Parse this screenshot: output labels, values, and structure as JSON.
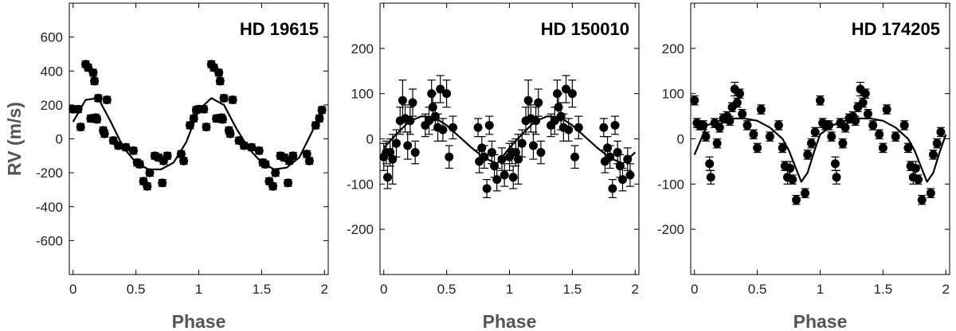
{
  "chart_data": [
    {
      "type": "scatter",
      "title": "HD 19615",
      "xlabel": "Phase",
      "ylabel": "RV (m/s)",
      "xlim": [
        -0.03,
        2.03
      ],
      "ylim": [
        -800,
        800
      ],
      "xticks": [
        "0",
        "0.5",
        "1",
        "1.5",
        "2"
      ],
      "yticks": [
        "600",
        "400",
        "200",
        "0",
        "-200",
        "-400",
        "-600"
      ],
      "grid": false,
      "model_curve": {
        "description": "sinusoidal fit",
        "x": [
          0,
          0.1,
          0.2,
          0.3,
          0.4,
          0.5,
          0.6,
          0.7,
          0.8,
          0.9,
          1.0,
          1.1,
          1.2,
          1.3,
          1.4,
          1.5,
          1.6,
          1.7,
          1.8,
          1.9,
          2.0
        ],
        "y": [
          100,
          230,
          240,
          100,
          -50,
          -140,
          -180,
          -180,
          -140,
          -20,
          170,
          240,
          200,
          60,
          -60,
          -140,
          -180,
          -170,
          -110,
          40,
          190
        ]
      },
      "points": [
        {
          "x": 0.0,
          "y": 175,
          "err": 20
        },
        {
          "x": 0.04,
          "y": 175,
          "err": 20
        },
        {
          "x": 0.06,
          "y": 70,
          "err": 20
        },
        {
          "x": 0.1,
          "y": 440,
          "err": 20
        },
        {
          "x": 0.12,
          "y": 420,
          "err": 20
        },
        {
          "x": 0.14,
          "y": 120,
          "err": 20
        },
        {
          "x": 0.16,
          "y": 390,
          "err": 20
        },
        {
          "x": 0.17,
          "y": 340,
          "err": 20
        },
        {
          "x": 0.18,
          "y": 125,
          "err": 20
        },
        {
          "x": 0.19,
          "y": 115,
          "err": 20
        },
        {
          "x": 0.2,
          "y": 240,
          "err": 20
        },
        {
          "x": 0.24,
          "y": 50,
          "err": 20
        },
        {
          "x": 0.25,
          "y": 30,
          "err": 20
        },
        {
          "x": 0.27,
          "y": 230,
          "err": 20
        },
        {
          "x": 0.32,
          "y": -10,
          "err": 20
        },
        {
          "x": 0.36,
          "y": -40,
          "err": 20
        },
        {
          "x": 0.42,
          "y": -50,
          "err": 20
        },
        {
          "x": 0.48,
          "y": -70,
          "err": 20
        },
        {
          "x": 0.51,
          "y": -140,
          "err": 20
        },
        {
          "x": 0.53,
          "y": -150,
          "err": 20
        },
        {
          "x": 0.56,
          "y": -250,
          "err": 20
        },
        {
          "x": 0.59,
          "y": -280,
          "err": 20
        },
        {
          "x": 0.61,
          "y": -200,
          "err": 20
        },
        {
          "x": 0.65,
          "y": -100,
          "err": 20
        },
        {
          "x": 0.68,
          "y": -110,
          "err": 20
        },
        {
          "x": 0.71,
          "y": -260,
          "err": 20
        },
        {
          "x": 0.72,
          "y": -130,
          "err": 20
        },
        {
          "x": 0.75,
          "y": -100,
          "err": 20
        },
        {
          "x": 0.86,
          "y": -90,
          "err": 20
        },
        {
          "x": 0.88,
          "y": -130,
          "err": 20
        },
        {
          "x": 0.93,
          "y": 80,
          "err": 20
        },
        {
          "x": 0.96,
          "y": 120,
          "err": 20
        },
        {
          "x": 0.98,
          "y": 170,
          "err": 20
        }
      ]
    },
    {
      "type": "scatter",
      "title": "HD 150010",
      "xlabel": "Phase",
      "ylabel": "",
      "xlim": [
        -0.03,
        2.03
      ],
      "ylim": [
        -300,
        300
      ],
      "xticks": [
        "0",
        "0.5",
        "1",
        "1.5",
        "2"
      ],
      "yticks": [
        "200",
        "100",
        "0",
        "-100",
        "-200"
      ],
      "grid": false,
      "model_curve": {
        "description": "sinusoidal fit",
        "x": [
          0,
          0.1,
          0.2,
          0.3,
          0.4,
          0.5,
          0.6,
          0.7,
          0.8,
          0.9,
          1.0,
          1.1,
          1.2,
          1.3,
          1.4,
          1.5,
          1.6,
          1.7,
          1.8,
          1.9,
          2.0
        ],
        "y": [
          -20,
          10,
          38,
          50,
          48,
          30,
          5,
          -20,
          -42,
          -55,
          -20,
          10,
          38,
          50,
          48,
          30,
          5,
          -20,
          -42,
          -55,
          -30
        ]
      },
      "points": [
        {
          "x": 0.0,
          "y": -40,
          "err": 30
        },
        {
          "x": 0.02,
          "y": -30,
          "err": 25
        },
        {
          "x": 0.03,
          "y": -85,
          "err": 25
        },
        {
          "x": 0.05,
          "y": -30,
          "err": 30
        },
        {
          "x": 0.07,
          "y": -45,
          "err": 55
        },
        {
          "x": 0.1,
          "y": -10,
          "err": 30
        },
        {
          "x": 0.13,
          "y": 40,
          "err": 30
        },
        {
          "x": 0.15,
          "y": 85,
          "err": 45
        },
        {
          "x": 0.17,
          "y": 45,
          "err": 30
        },
        {
          "x": 0.19,
          "y": -15,
          "err": 30
        },
        {
          "x": 0.21,
          "y": 40,
          "err": 30
        },
        {
          "x": 0.23,
          "y": 80,
          "err": 30
        },
        {
          "x": 0.25,
          "y": -30,
          "err": 25
        },
        {
          "x": 0.33,
          "y": 30,
          "err": 25
        },
        {
          "x": 0.36,
          "y": 40,
          "err": 30
        },
        {
          "x": 0.38,
          "y": 100,
          "err": 30
        },
        {
          "x": 0.39,
          "y": 70,
          "err": 30
        },
        {
          "x": 0.41,
          "y": 50,
          "err": 30
        },
        {
          "x": 0.43,
          "y": 25,
          "err": 30
        },
        {
          "x": 0.45,
          "y": 110,
          "err": 30
        },
        {
          "x": 0.47,
          "y": 20,
          "err": 25
        },
        {
          "x": 0.5,
          "y": 100,
          "err": 30
        },
        {
          "x": 0.52,
          "y": -40,
          "err": 25
        },
        {
          "x": 0.55,
          "y": 25,
          "err": 25
        },
        {
          "x": 0.75,
          "y": 25,
          "err": 20
        },
        {
          "x": 0.76,
          "y": -50,
          "err": 25
        },
        {
          "x": 0.78,
          "y": -20,
          "err": 25
        },
        {
          "x": 0.8,
          "y": -40,
          "err": 25
        },
        {
          "x": 0.82,
          "y": -110,
          "err": 20
        },
        {
          "x": 0.84,
          "y": 30,
          "err": 20
        },
        {
          "x": 0.86,
          "y": -30,
          "err": 25
        },
        {
          "x": 0.88,
          "y": -60,
          "err": 25
        },
        {
          "x": 0.9,
          "y": -90,
          "err": 25
        },
        {
          "x": 0.94,
          "y": -45,
          "err": 25
        },
        {
          "x": 0.96,
          "y": -80,
          "err": 25
        }
      ]
    },
    {
      "type": "scatter",
      "title": "HD 174205",
      "xlabel": "Phase",
      "ylabel": "",
      "xlim": [
        -0.03,
        2.03
      ],
      "ylim": [
        -300,
        300
      ],
      "xticks": [
        "0",
        "0.5",
        "1",
        "1.5",
        "2"
      ],
      "yticks": [
        "200",
        "100",
        "0",
        "-100",
        "-200"
      ],
      "grid": false,
      "model_curve": {
        "description": "eccentric orbit fit",
        "x": [
          0,
          0.1,
          0.2,
          0.3,
          0.4,
          0.5,
          0.6,
          0.7,
          0.75,
          0.8,
          0.85,
          0.9,
          0.95,
          1.0,
          1.1,
          1.2,
          1.3,
          1.4,
          1.5,
          1.6,
          1.7,
          1.75,
          1.8,
          1.85,
          1.9,
          1.95,
          2.0
        ],
        "y": [
          -35,
          30,
          40,
          45,
          45,
          40,
          25,
          0,
          -25,
          -60,
          -95,
          -75,
          -30,
          10,
          30,
          40,
          45,
          45,
          40,
          25,
          0,
          -25,
          -60,
          -95,
          -75,
          -30,
          10
        ]
      },
      "points": [
        {
          "x": 0.0,
          "y": 85,
          "err": 10
        },
        {
          "x": 0.02,
          "y": 35,
          "err": 10
        },
        {
          "x": 0.04,
          "y": 30,
          "err": 10
        },
        {
          "x": 0.07,
          "y": 30,
          "err": 10
        },
        {
          "x": 0.09,
          "y": 5,
          "err": 10
        },
        {
          "x": 0.12,
          "y": -55,
          "err": 15
        },
        {
          "x": 0.13,
          "y": -85,
          "err": 15
        },
        {
          "x": 0.16,
          "y": 35,
          "err": 10
        },
        {
          "x": 0.18,
          "y": -10,
          "err": 10
        },
        {
          "x": 0.2,
          "y": 25,
          "err": 10
        },
        {
          "x": 0.23,
          "y": 45,
          "err": 10
        },
        {
          "x": 0.26,
          "y": 50,
          "err": 10
        },
        {
          "x": 0.28,
          "y": 40,
          "err": 10
        },
        {
          "x": 0.3,
          "y": 70,
          "err": 10
        },
        {
          "x": 0.32,
          "y": 110,
          "err": 15
        },
        {
          "x": 0.34,
          "y": 80,
          "err": 10
        },
        {
          "x": 0.36,
          "y": 100,
          "err": 10
        },
        {
          "x": 0.38,
          "y": 55,
          "err": 10
        },
        {
          "x": 0.42,
          "y": 30,
          "err": 10
        },
        {
          "x": 0.47,
          "y": 10,
          "err": 10
        },
        {
          "x": 0.5,
          "y": -20,
          "err": 10
        },
        {
          "x": 0.53,
          "y": 65,
          "err": 10
        },
        {
          "x": 0.6,
          "y": 5,
          "err": 10
        },
        {
          "x": 0.67,
          "y": 30,
          "err": 10
        },
        {
          "x": 0.7,
          "y": -20,
          "err": 10
        },
        {
          "x": 0.72,
          "y": -60,
          "err": 10
        },
        {
          "x": 0.74,
          "y": -85,
          "err": 15
        },
        {
          "x": 0.76,
          "y": -65,
          "err": 15
        },
        {
          "x": 0.78,
          "y": -90,
          "err": 10
        },
        {
          "x": 0.81,
          "y": -135,
          "err": 10
        },
        {
          "x": 0.88,
          "y": -120,
          "err": 10
        },
        {
          "x": 0.9,
          "y": -35,
          "err": 10
        },
        {
          "x": 0.93,
          "y": -10,
          "err": 10
        },
        {
          "x": 0.96,
          "y": 15,
          "err": 10
        }
      ]
    }
  ]
}
